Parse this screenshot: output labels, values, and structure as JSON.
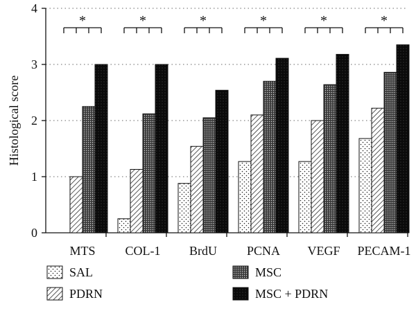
{
  "chart_data": {
    "type": "bar",
    "ylabel": "Histological score",
    "ylim": [
      0,
      4
    ],
    "yticks": [
      "0",
      "1",
      "2",
      "3",
      "4"
    ],
    "grid": "horizontal dotted",
    "categories": [
      "MTS",
      "COL-1",
      "BrdU",
      "PCNA",
      "VEGF",
      "PECAM-1"
    ],
    "series": [
      {
        "name": "SAL",
        "pattern": "dots",
        "values": [
          0,
          0.25,
          0.88,
          1.27,
          1.27,
          1.68
        ]
      },
      {
        "name": "PDRN",
        "pattern": "diagonal",
        "values": [
          1.0,
          1.13,
          1.54,
          2.1,
          2.0,
          2.22
        ]
      },
      {
        "name": "MSC",
        "pattern": "dense-dots",
        "values": [
          2.25,
          2.12,
          2.05,
          2.7,
          2.64,
          2.86
        ]
      },
      {
        "name": "MSC + PDRN",
        "pattern": "black",
        "values": [
          3.0,
          3.0,
          2.54,
          3.11,
          3.18,
          3.35
        ]
      }
    ],
    "significance": [
      "*",
      "*",
      "*",
      "*",
      "*",
      "*"
    ],
    "legend_position": "bottom"
  }
}
